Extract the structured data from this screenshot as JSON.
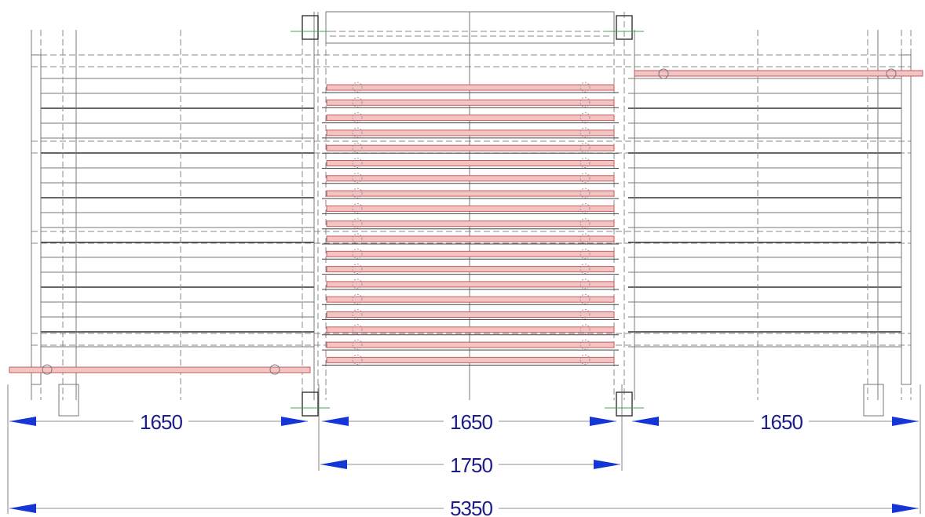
{
  "dimensions": [
    {
      "label": 1650
    },
    {
      "label": 1650
    },
    {
      "label": 1650
    },
    {
      "label": 1750
    },
    {
      "label": 5350
    }
  ]
}
